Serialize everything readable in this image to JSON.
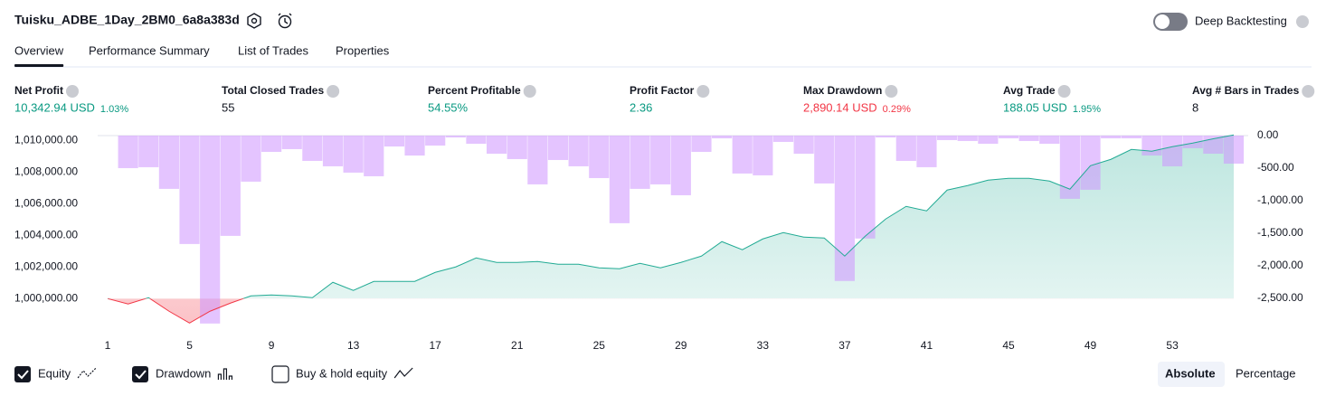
{
  "header": {
    "title": "Tuisku_ADBE_1Day_2BM0_6a8a383d",
    "toggle": "Deep Backtesting",
    "toggle_on": false
  },
  "tabs": {
    "items": [
      "Overview",
      "Performance Summary",
      "List of Trades",
      "Properties"
    ],
    "active": 0
  },
  "metrics": [
    {
      "label": "Net Profit",
      "value": "10,342.94 USD",
      "percent": "1.03%",
      "color": "#089981"
    },
    {
      "label": "Total Closed Trades",
      "value": "55",
      "color": "#131722"
    },
    {
      "label": "Percent Profitable",
      "value": "54.55%",
      "color": "#089981"
    },
    {
      "label": "Profit Factor",
      "value": "2.36",
      "color": "#089981"
    },
    {
      "label": "Max Drawdown",
      "value": "2,890.14 USD",
      "percent": "0.29%",
      "color": "#f23645"
    },
    {
      "label": "Avg Trade",
      "value": "188.05 USD",
      "percent": "1.95%",
      "color": "#089981"
    },
    {
      "label": "Avg # Bars in Trades",
      "value": "8",
      "color": "#131722"
    }
  ],
  "chart_data": {
    "type": "combo",
    "x": [
      1,
      2,
      3,
      4,
      5,
      6,
      7,
      8,
      9,
      10,
      11,
      12,
      13,
      14,
      15,
      16,
      17,
      18,
      19,
      20,
      21,
      22,
      23,
      24,
      25,
      26,
      27,
      28,
      29,
      30,
      31,
      32,
      33,
      34,
      35,
      36,
      37,
      38,
      39,
      40,
      41,
      42,
      43,
      44,
      45,
      46,
      47,
      48,
      49,
      50,
      51,
      52,
      53,
      54,
      55,
      56
    ],
    "xlim": [
      1,
      56
    ],
    "xticks": [
      1,
      5,
      9,
      13,
      17,
      21,
      25,
      29,
      33,
      37,
      41,
      45,
      49,
      53
    ],
    "ylim": [
      998300,
      1010300
    ],
    "yticks": [
      {
        "value": 1000000,
        "label": "1,000,000.00"
      },
      {
        "value": 1002000,
        "label": "1,002,000.00"
      },
      {
        "value": 1004000,
        "label": "1,004,000.00"
      },
      {
        "value": 1006000,
        "label": "1,006,000.00"
      },
      {
        "value": 1008000,
        "label": "1,008,000.00"
      },
      {
        "value": 1010000,
        "label": "1,010,000.00"
      }
    ],
    "y2lim": [
      -2920,
      0
    ],
    "y2ticks": [
      {
        "value": 0,
        "label": "0.00"
      },
      {
        "value": -500,
        "label": "-500.00"
      },
      {
        "value": -1000,
        "label": "-1,000.00"
      },
      {
        "value": -1500,
        "label": "-1,500.00"
      },
      {
        "value": -2000,
        "label": "-2,000.00"
      },
      {
        "value": -2500,
        "label": "-2,500.00"
      }
    ],
    "grid": false,
    "series": [
      {
        "name": "Equity",
        "checked": true,
        "color": "#22ab94",
        "negative_color": "#f23645",
        "values": [
          1000000,
          999657,
          1000057,
          999200,
          998457,
          999200,
          999714,
          1000171,
          1000229,
          1000171,
          1000057,
          1001029,
          1000514,
          1001086,
          1001086,
          1001086,
          1001657,
          1002000,
          1002571,
          1002286,
          1002286,
          1002343,
          1002171,
          1002171,
          1001943,
          1001886,
          1002229,
          1001943,
          1002286,
          1002686,
          1003600,
          1003086,
          1003771,
          1004171,
          1003886,
          1003829,
          1002686,
          1003943,
          1005029,
          1005829,
          1005543,
          1006857,
          1007143,
          1007486,
          1007600,
          1007600,
          1007429,
          1006914,
          1008400,
          1008800,
          1009429,
          1009314,
          1009600,
          1009829,
          1010100,
          1010343
        ]
      },
      {
        "name": "Drawdown",
        "checked": true,
        "axis": "y2",
        "color": "#ce93ff",
        "values": [
          0,
          -500,
          -486,
          -819,
          -1667,
          -2890,
          -1542,
          -708,
          -250,
          -208,
          -389,
          -472,
          -569,
          -625,
          -167,
          -306,
          -153,
          -28,
          -125,
          -278,
          -361,
          -750,
          -375,
          -472,
          -653,
          -1347,
          -819,
          -750,
          -917,
          -250,
          -42,
          -583,
          -611,
          -97,
          -278,
          -736,
          -2236,
          -1583,
          -28,
          -389,
          -486,
          -69,
          -83,
          -125,
          -42,
          -83,
          -125,
          -972,
          -833,
          -42,
          -42,
          -306,
          -472,
          -194,
          -278,
          -431
        ]
      },
      {
        "name": "Buy & hold equity",
        "checked": false
      }
    ],
    "modes": [
      "Absolute",
      "Percentage"
    ],
    "active_mode": 0
  }
}
